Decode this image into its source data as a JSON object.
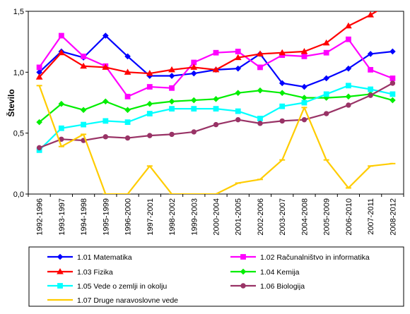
{
  "chart_data": {
    "type": "line",
    "title": "",
    "xlabel": "",
    "ylabel": "Število",
    "ylim": [
      0,
      1.5
    ],
    "y_ticks": [
      "0,0",
      "0,5",
      "1,0",
      "1,5"
    ],
    "grid": "horizontal",
    "legend_position": "bottom",
    "categories": [
      "1992-1996",
      "1993-1997",
      "1994-1998",
      "1995-1999",
      "1996-2000",
      "1997-2001",
      "1998-2002",
      "1999-2003",
      "2000-2004",
      "2001-2005",
      "2002-2006",
      "2003-2007",
      "2004-2008",
      "2005-2009",
      "2006-2010",
      "2007-2011",
      "2008-2012"
    ],
    "series": [
      {
        "name": "1.01 Matematika",
        "color": "#0000ff",
        "marker": "diamond",
        "values": [
          1.0,
          1.17,
          1.12,
          1.3,
          1.13,
          0.97,
          0.97,
          0.99,
          1.02,
          1.03,
          1.15,
          0.91,
          0.88,
          0.95,
          1.03,
          1.15,
          1.17
        ]
      },
      {
        "name": "1.02 Računalništvo in informatika",
        "color": "#ff00ff",
        "marker": "square",
        "values": [
          1.04,
          1.3,
          1.13,
          1.05,
          0.8,
          0.88,
          0.87,
          1.08,
          1.16,
          1.17,
          1.04,
          1.14,
          1.13,
          1.16,
          1.27,
          1.02,
          0.95
        ]
      },
      {
        "name": "1.03 Fizika",
        "color": "#ff0000",
        "marker": "triangle",
        "values": [
          0.96,
          1.16,
          1.05,
          1.04,
          1.0,
          0.99,
          1.02,
          1.04,
          1.02,
          1.12,
          1.15,
          1.16,
          1.17,
          1.24,
          1.38,
          1.47,
          1.58
        ]
      },
      {
        "name": "1.04 Kemija",
        "color": "#00ee00",
        "marker": "diamond",
        "values": [
          0.59,
          0.74,
          0.69,
          0.76,
          0.69,
          0.74,
          0.76,
          0.77,
          0.78,
          0.83,
          0.85,
          0.83,
          0.79,
          0.79,
          0.8,
          0.82,
          0.77
        ]
      },
      {
        "name": "1.05 Vede o zemlji in okolju",
        "color": "#00ffff",
        "marker": "square",
        "values": [
          0.36,
          0.54,
          0.57,
          0.6,
          0.59,
          0.66,
          0.7,
          0.7,
          0.7,
          0.68,
          0.62,
          0.72,
          0.75,
          0.82,
          0.89,
          0.86,
          0.82
        ]
      },
      {
        "name": "1.06 Biologija",
        "color": "#993366",
        "marker": "circle",
        "values": [
          0.38,
          0.45,
          0.44,
          0.47,
          0.46,
          0.48,
          0.49,
          0.51,
          0.57,
          0.61,
          0.58,
          0.6,
          0.61,
          0.66,
          0.73,
          0.81,
          0.91
        ]
      },
      {
        "name": "1.07 Druge naravoslovne vede",
        "color": "#ffcc00",
        "marker": "dash",
        "values": [
          0.89,
          0.39,
          0.49,
          0.0,
          0.0,
          0.23,
          0.0,
          0.0,
          0.0,
          0.09,
          0.12,
          0.28,
          0.71,
          0.28,
          0.05,
          0.23,
          0.25
        ]
      }
    ]
  }
}
